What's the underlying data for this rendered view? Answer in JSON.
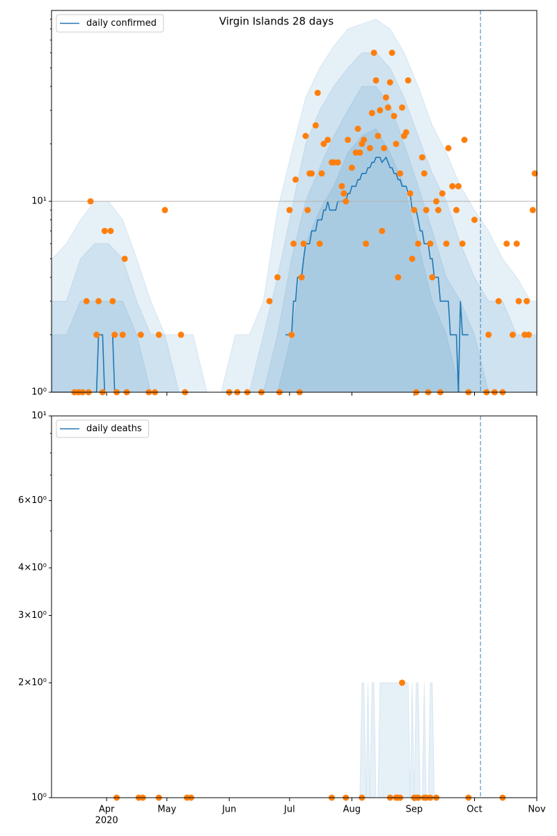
{
  "chart_data": [
    {
      "type": "line",
      "title": "Virgin Islands 28 days",
      "log_y": true,
      "grid": true,
      "legend": "upper left",
      "xlim": [
        64.6,
        306
      ],
      "ylim": [
        1,
        100
      ],
      "yticks": [
        {
          "value": 1,
          "label": "10⁰"
        },
        {
          "value": 10,
          "label": "10¹"
        }
      ],
      "yminorticks": [
        2,
        3,
        4,
        5,
        6,
        7,
        8,
        9,
        20,
        30,
        40,
        50,
        60,
        70,
        80,
        90
      ],
      "vline": 278,
      "series": [
        {
          "name": "daily confirmed",
          "color": "#1f77b4",
          "x": [
            65,
            87,
            88,
            90,
            91,
            92,
            95,
            96,
            104,
            105,
            181,
            184,
            185,
            186,
            187,
            189,
            190,
            191,
            193,
            194,
            196,
            197,
            199,
            200,
            201,
            202,
            203,
            206,
            207,
            211,
            212,
            213,
            214,
            216,
            217,
            218,
            219,
            221,
            222,
            223,
            224,
            225,
            226,
            228,
            229,
            231,
            232,
            233,
            234,
            235,
            236,
            237,
            238,
            239,
            241,
            242,
            243,
            244,
            246,
            247,
            248,
            249,
            250,
            252,
            253,
            254,
            255,
            257,
            258,
            262,
            263,
            266,
            267,
            268,
            269,
            272,
            273
          ],
          "values": [
            1,
            1,
            2,
            2,
            1,
            null,
            2,
            1,
            1,
            null,
            2,
            2,
            3,
            3,
            4,
            4,
            5,
            6,
            6,
            7,
            7,
            8,
            8,
            9,
            9,
            10,
            9,
            9,
            10,
            10,
            11,
            11,
            12,
            12,
            13,
            13,
            14,
            14,
            15,
            15,
            16,
            16,
            17,
            17,
            16,
            17,
            16,
            15,
            15,
            14,
            14,
            13,
            13,
            12,
            12,
            11,
            11,
            9,
            9,
            8,
            7,
            7,
            6,
            6,
            5,
            5,
            4,
            4,
            3,
            3,
            2,
            2,
            1,
            3,
            2,
            2,
            null
          ]
        }
      ],
      "points": {
        "color": "#ff7f0e",
        "x": [
          76,
          78,
          80,
          82,
          83,
          84,
          87,
          88,
          90,
          91,
          94,
          95,
          96,
          97,
          100,
          101,
          102,
          109,
          113,
          116,
          118,
          121,
          129,
          131,
          153,
          157,
          162,
          169,
          173,
          177,
          178,
          183,
          184,
          185,
          186,
          188,
          189,
          190,
          191,
          192,
          193,
          194,
          196,
          197,
          198,
          199,
          200,
          202,
          204,
          205,
          207,
          209,
          210,
          211,
          212,
          214,
          216,
          217,
          218,
          219,
          220,
          221,
          223,
          224,
          225,
          226,
          227,
          228,
          229,
          230,
          231,
          232,
          233,
          234,
          235,
          236,
          237,
          238,
          239,
          240,
          241,
          242,
          243,
          244,
          245,
          246,
          247,
          249,
          250,
          251,
          252,
          253,
          254,
          256,
          257,
          258,
          259,
          261,
          262,
          264,
          266,
          267,
          269,
          270,
          272,
          275,
          281,
          282,
          285,
          287,
          289,
          291,
          294,
          296,
          297,
          300,
          301,
          302,
          304,
          305
        ],
        "values": [
          1,
          1,
          1,
          3,
          1,
          10,
          2,
          3,
          1,
          7,
          7,
          3,
          2,
          1,
          2,
          5,
          1,
          2,
          1,
          1,
          2,
          9,
          2,
          1,
          1,
          1,
          1,
          1,
          3,
          4,
          1,
          9,
          2,
          6,
          13,
          1,
          4,
          6,
          22,
          9,
          14,
          14,
          25,
          37,
          6,
          14,
          20,
          21,
          16,
          16,
          16,
          12,
          11,
          10,
          21,
          15,
          18,
          24,
          18,
          20,
          21,
          6,
          19,
          29,
          60,
          43,
          22,
          30,
          7,
          19,
          35,
          31,
          42,
          60,
          28,
          20,
          4,
          14,
          31,
          22,
          23,
          43,
          11,
          5,
          9,
          1,
          6,
          17,
          14,
          9,
          1,
          6,
          4,
          10,
          9,
          1,
          11,
          6,
          19,
          12,
          9,
          12,
          6,
          21,
          1,
          8,
          1,
          2,
          1,
          3,
          1,
          6,
          2,
          6,
          3,
          2,
          3,
          2,
          9,
          14
        ]
      },
      "bands": {
        "color": "#1f77b4",
        "x": [
          65,
          72,
          79,
          86,
          93,
          100,
          107,
          114,
          121,
          128,
          135,
          142,
          149,
          156,
          163,
          170,
          177,
          184,
          191,
          198,
          205,
          212,
          219,
          226,
          233,
          240,
          247,
          254,
          261,
          268,
          275,
          282,
          289,
          296,
          303,
          306
        ],
        "upper": [
          [
            5,
            6,
            8,
            10,
            10,
            8,
            5,
            3,
            2,
            2,
            2,
            1,
            1,
            2,
            2,
            3,
            9,
            18,
            35,
            50,
            65,
            80,
            85,
            90,
            80,
            60,
            40,
            25,
            18,
            12,
            9,
            7,
            5,
            4,
            3,
            3
          ],
          [
            3,
            3,
            5,
            6,
            6,
            5,
            3,
            2,
            2,
            1,
            1,
            1,
            1,
            1,
            1,
            2,
            4,
            9,
            20,
            30,
            40,
            50,
            60,
            60,
            50,
            35,
            22,
            14,
            10,
            6,
            4,
            3,
            3,
            2,
            2,
            2
          ],
          [
            2,
            2,
            3,
            3,
            3,
            3,
            2,
            1,
            1,
            1,
            1,
            1,
            1,
            1,
            1,
            1,
            2,
            5,
            10,
            15,
            22,
            30,
            40,
            40,
            32,
            20,
            12,
            7,
            4,
            3,
            2,
            1,
            1,
            1,
            1,
            1
          ],
          [
            1,
            1,
            1,
            1,
            1,
            1,
            1,
            1,
            1,
            1,
            1,
            1,
            1,
            1,
            1,
            1,
            1,
            2,
            6,
            9,
            12,
            18,
            22,
            24,
            18,
            12,
            6,
            3,
            2,
            1,
            1,
            1,
            1,
            1,
            1,
            1
          ]
        ]
      }
    },
    {
      "type": "line",
      "log_y": true,
      "grid": false,
      "legend": "upper left",
      "xlim": [
        64.6,
        306
      ],
      "ylim": [
        1,
        10
      ],
      "xticks": [
        {
          "value": 92,
          "label": "Apr"
        },
        {
          "value": 122,
          "label": "May"
        },
        {
          "value": 153,
          "label": "Jun"
        },
        {
          "value": 183,
          "label": "Jul"
        },
        {
          "value": 214,
          "label": "Aug"
        },
        {
          "value": 245,
          "label": "Sep"
        },
        {
          "value": 275,
          "label": "Oct"
        },
        {
          "value": 306,
          "label": "Nov"
        }
      ],
      "x_sublabel": "2020",
      "yticks": [
        {
          "value": 1,
          "label": "10⁰"
        },
        {
          "value": 2,
          "label": "2×10⁰"
        },
        {
          "value": 3,
          "label": "3×10⁰"
        },
        {
          "value": 4,
          "label": "4×10⁰"
        },
        {
          "value": 6,
          "label": "6×10⁰"
        },
        {
          "value": 10,
          "label": "10¹"
        }
      ],
      "yminorticks": [
        5,
        7,
        8,
        9
      ],
      "vline": 278,
      "series": [
        {
          "name": "daily deaths",
          "color": "#1f77b4",
          "x": [],
          "values": []
        }
      ],
      "points": {
        "color": "#ff7f0e",
        "x": [
          97,
          108,
          110,
          118,
          132,
          134,
          204,
          211,
          219,
          233,
          236,
          237,
          238,
          239,
          245,
          246,
          247,
          250,
          251,
          253,
          256,
          272,
          289
        ],
        "values": [
          1,
          1,
          1,
          1,
          1,
          1,
          1,
          1,
          1,
          1,
          1,
          1,
          1,
          2,
          1,
          1,
          1,
          1,
          1,
          1,
          1,
          1,
          1
        ]
      },
      "bands": {
        "color": "#1f77b4",
        "x": [
          218,
          219,
          220,
          221,
          222,
          223,
          224,
          225,
          226,
          227,
          228,
          242,
          243,
          244,
          245,
          246,
          247,
          248,
          249,
          250,
          251,
          252,
          253,
          254,
          255
        ],
        "upper": [
          [
            1,
            2,
            2,
            1,
            2,
            1,
            2,
            2,
            1,
            1,
            2,
            2,
            1,
            2,
            1,
            2,
            2,
            1,
            1,
            2,
            1,
            1,
            2,
            2,
            1
          ]
        ]
      }
    }
  ]
}
